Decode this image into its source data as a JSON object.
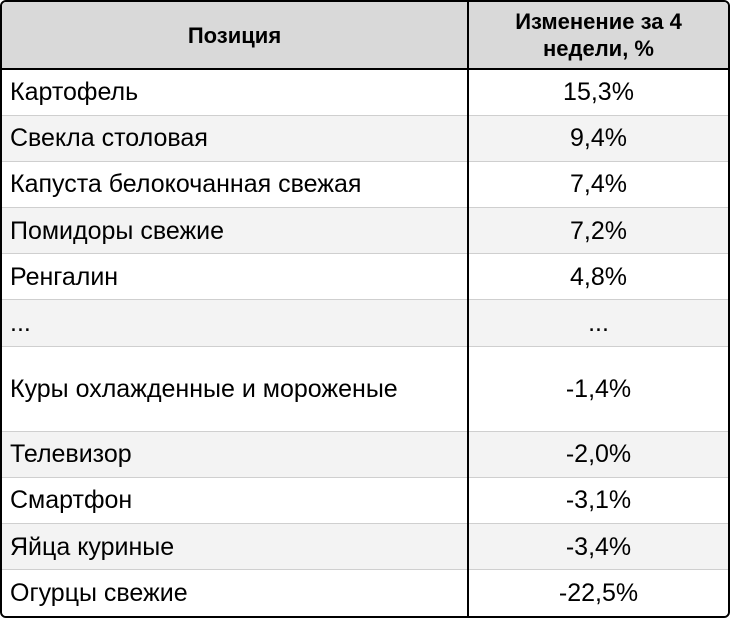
{
  "table": {
    "headers": {
      "position": "Позиция",
      "change": "Изменение за 4 недели, %"
    },
    "rows": [
      {
        "position": "Картофель",
        "change": "15,3%"
      },
      {
        "position": "Свекла столовая",
        "change": "9,4%"
      },
      {
        "position": "Капуста белокочанная свежая",
        "change": "7,4%"
      },
      {
        "position": "Помидоры свежие",
        "change": "7,2%"
      },
      {
        "position": "Ренгалин",
        "change": "4,8%"
      },
      {
        "position": "...",
        "change": "..."
      },
      {
        "position": "Куры охлажденные и мороженые",
        "change": "-1,4%"
      },
      {
        "position": "Телевизор",
        "change": "-2,0%"
      },
      {
        "position": "Смартфон",
        "change": "-3,1%"
      },
      {
        "position": "Яйца куриные",
        "change": "-3,4%"
      },
      {
        "position": "Огурцы свежие",
        "change": "-22,5%"
      }
    ]
  }
}
